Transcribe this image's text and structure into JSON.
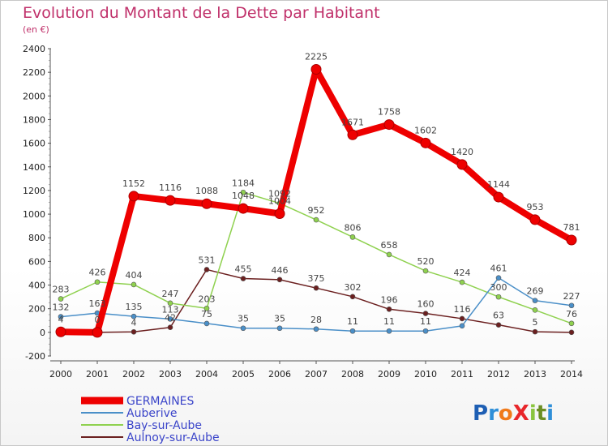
{
  "chart_data": {
    "type": "line",
    "title": "Evolution du Montant de la Dette par Habitant",
    "subtitle": "(en €)",
    "x": [
      "2000",
      "2001",
      "2002",
      "2003",
      "2004",
      "2005",
      "2006",
      "2007",
      "2008",
      "2009",
      "2010",
      "2011",
      "2012",
      "2013",
      "2014"
    ],
    "ylim": [
      -200,
      2400
    ],
    "yticks": [
      -200,
      0,
      200,
      400,
      600,
      800,
      1000,
      1200,
      1400,
      1600,
      1800,
      2000,
      2200,
      2400
    ],
    "grid": false,
    "legend_position": "bottom-left",
    "series": [
      {
        "name": "Aulnoy-sur-Aube",
        "color": "#6b1f1f",
        "width": 1.5,
        "values": [
          0,
          0,
          4,
          42,
          531,
          455,
          446,
          375,
          302,
          196,
          160,
          116,
          63,
          5,
          0
        ],
        "labels": [
          "",
          "",
          "4",
          "42",
          "531",
          "455",
          "446",
          "375",
          "302",
          "196",
          "160",
          "116",
          "63",
          "5",
          ""
        ]
      },
      {
        "name": "Bay-sur-Aube",
        "color": "#8fd14f",
        "width": 1.5,
        "values": [
          283,
          426,
          404,
          247,
          203,
          1184,
          1092,
          952,
          806,
          658,
          520,
          424,
          300,
          189,
          76
        ],
        "labels": [
          "283",
          "426",
          "404",
          "247",
          "203",
          "1184",
          "1092",
          "952",
          "806",
          "658",
          "520",
          "424",
          "300",
          "",
          "76"
        ]
      },
      {
        "name": "Auberive",
        "color": "#4a8fc8",
        "width": 1.5,
        "values": [
          132,
          163,
          135,
          113,
          75,
          35,
          35,
          28,
          11,
          11,
          11,
          55,
          461,
          269,
          227
        ],
        "labels": [
          "132",
          "163",
          "135",
          "113",
          "75",
          "35",
          "35",
          "28",
          "11",
          "11",
          "11",
          "",
          "461",
          "269",
          "227"
        ]
      },
      {
        "name": "GERMAINES",
        "color": "#ee0000",
        "width": 8,
        "values": [
          4,
          0,
          1152,
          1116,
          1088,
          1048,
          1004,
          2225,
          1671,
          1758,
          1602,
          1420,
          1144,
          953,
          781
        ],
        "labels": [
          "4",
          "0",
          "1152",
          "1116",
          "1088",
          "1048",
          "1004",
          "2225",
          "1671",
          "1758",
          "1602",
          "1420",
          "1144",
          "953",
          "781"
        ]
      }
    ],
    "legend": [
      "GERMAINES",
      "Auberive",
      "Bay-sur-Aube",
      "Aulnoy-sur-Aube"
    ]
  },
  "logo": {
    "text": "ProXiti"
  },
  "colors": {
    "title": "#c0306a",
    "legend_text": "#3a44c9",
    "axis": "#555555"
  }
}
